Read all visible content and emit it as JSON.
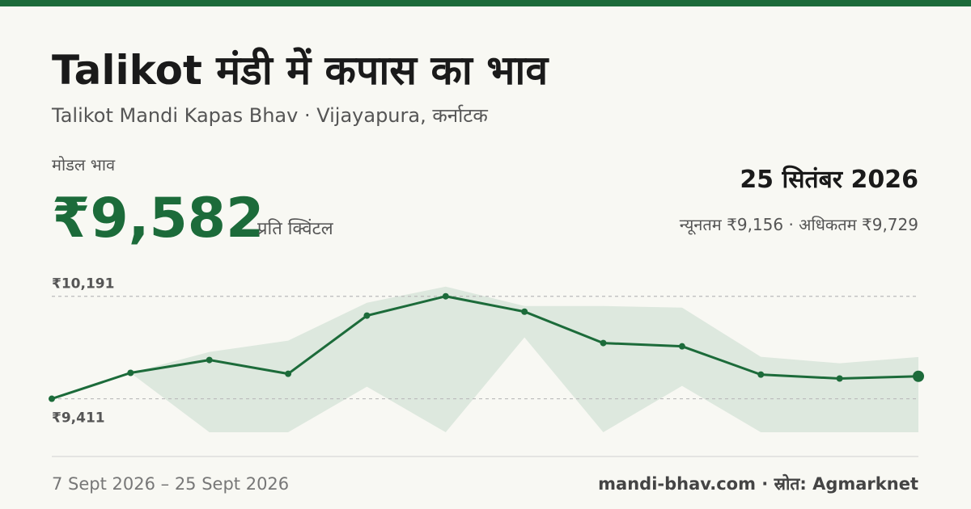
{
  "header": {
    "title": "Talikot मंडी में कपास का भाव",
    "subtitle": "Talikot Mandi Kapas Bhav · Vijayapura, कर्नाटक"
  },
  "price": {
    "label": "मोडल भाव",
    "value": "₹9,582",
    "unit": "प्रति क्विंटल",
    "date": "25 सितंबर 2026",
    "range": "न्यूनतम ₹9,156 · अधिकतम ₹9,729"
  },
  "chart_data": {
    "type": "line",
    "categories": [
      null,
      null,
      null,
      null,
      null,
      null,
      null,
      null,
      null,
      null,
      null,
      null
    ],
    "values": [
      9411,
      9608,
      9706,
      9601,
      10044,
      10191,
      10074,
      9835,
      9810,
      9595,
      9565,
      9582
    ],
    "color": "#1c6b3a",
    "band_high": [
      9411,
      9608,
      9767,
      9853,
      10142,
      10265,
      10117,
      10117,
      10105,
      9730,
      9681,
      9729
    ],
    "band_low": [
      9411,
      9608,
      9156,
      9156,
      9503,
      9156,
      9878,
      9156,
      9509,
      9156,
      9156,
      9156
    ],
    "band_color": "#dde8de",
    "ylim": [
      9156,
      10300
    ],
    "yticks": [
      {
        "value": 9411,
        "label": "₹9,411"
      },
      {
        "value": 10191,
        "label": "₹10,191"
      }
    ],
    "grid": true
  },
  "footer": {
    "dates": "7 Sept 2026 – 25 Sept 2026",
    "source": "mandi-bhav.com · स्रोत: Agmarknet"
  }
}
